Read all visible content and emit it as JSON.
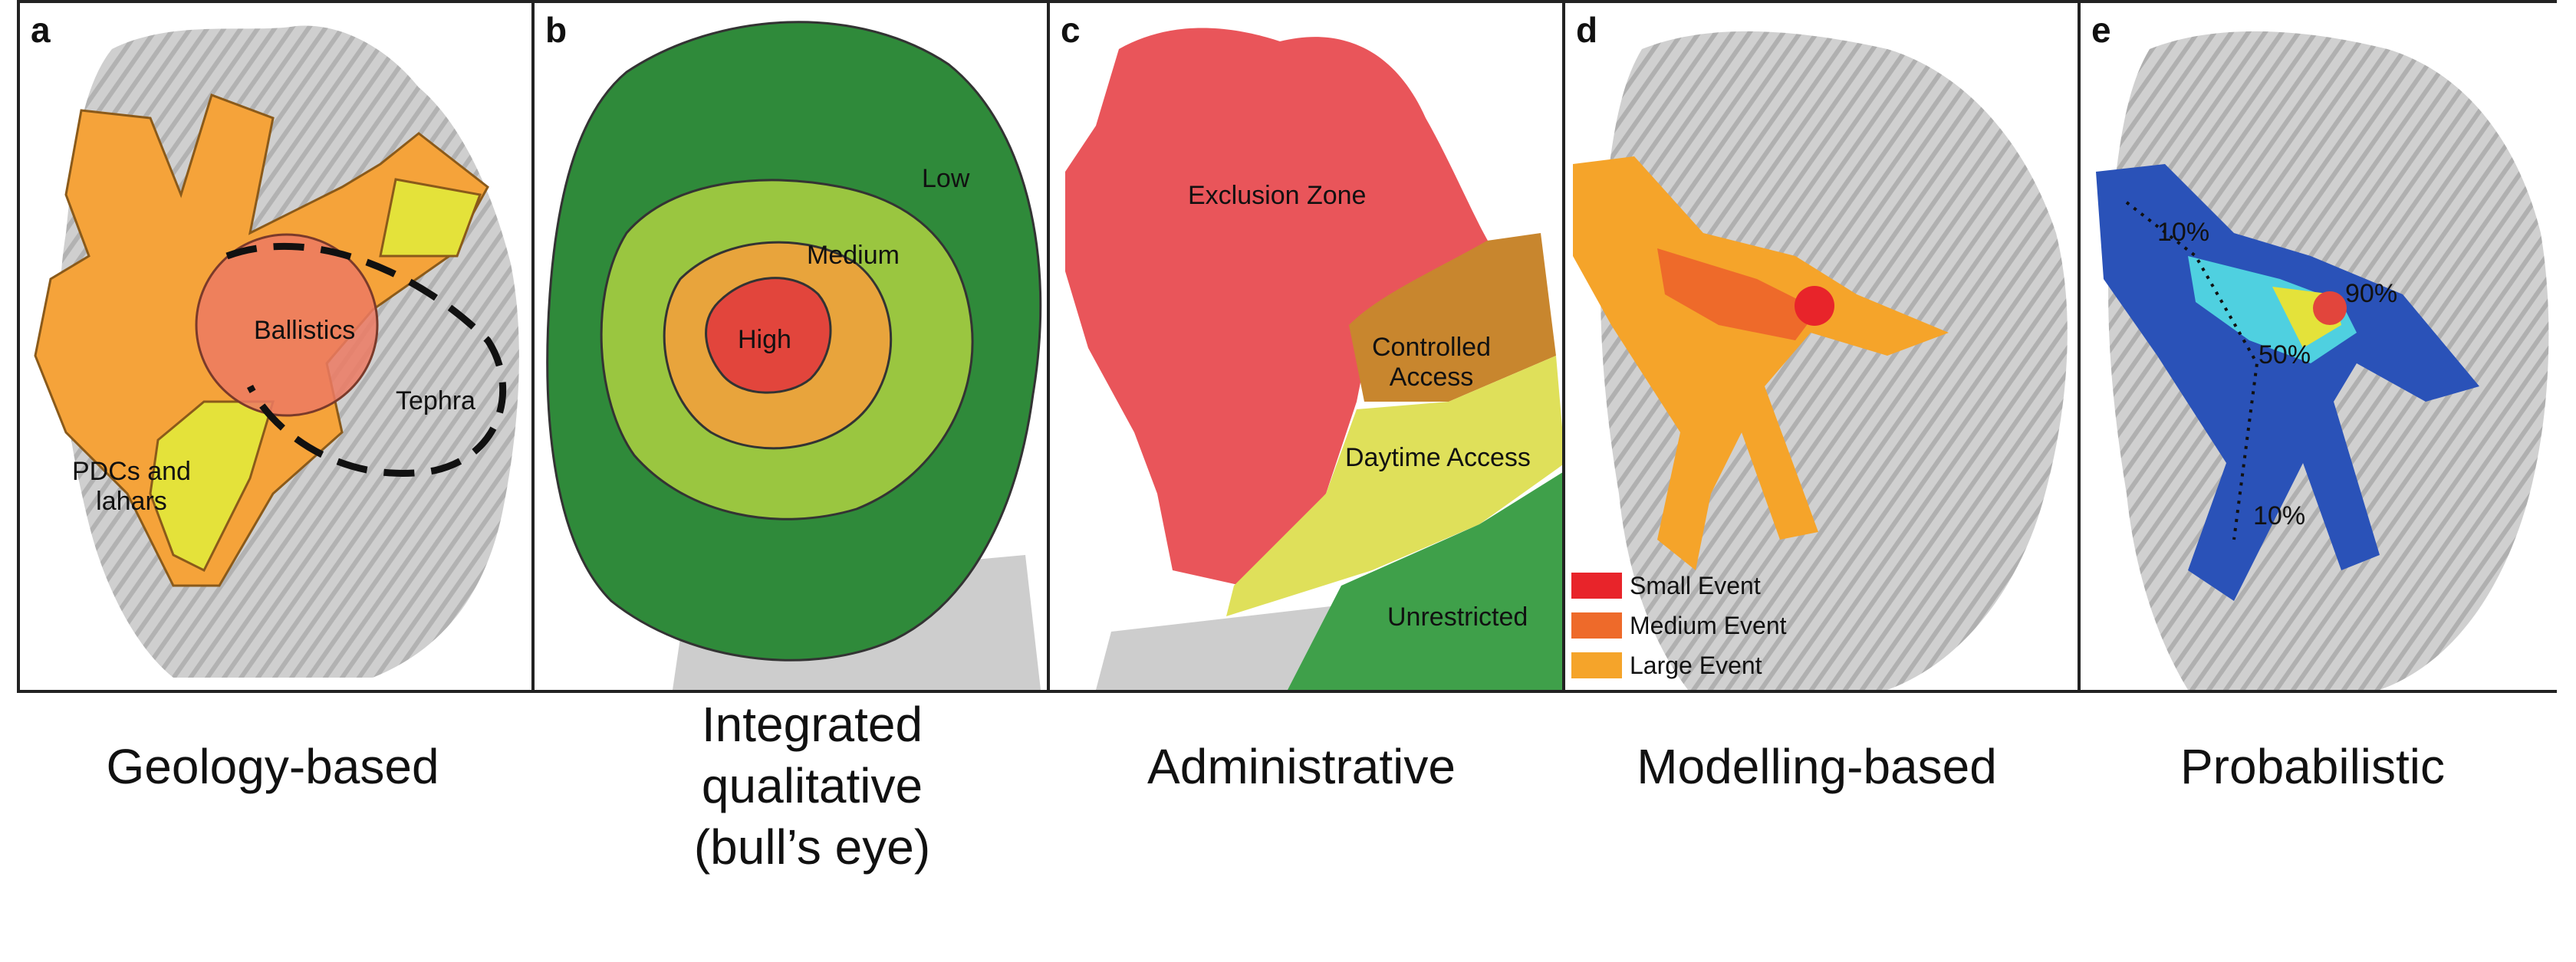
{
  "panels": [
    {
      "letter": "a",
      "caption": "Geology-based",
      "labels": {
        "ballistics": "Ballistics",
        "tephra": "Tephra",
        "pdcs": "PDCs and\nlahars"
      }
    },
    {
      "letter": "b",
      "caption": "Integrated qualitative (bull’s eye)",
      "labels": {
        "low": "Low",
        "medium": "Medium",
        "high": "High"
      }
    },
    {
      "letter": "c",
      "caption": "Administrative",
      "labels": {
        "exclusion": "Exclusion Zone",
        "controlled": "Controlled\nAccess",
        "daytime": "Daytime Access",
        "unrestricted": "Unrestricted"
      }
    },
    {
      "letter": "d",
      "caption": "Modelling-based",
      "legend": [
        {
          "label": "Small Event",
          "color": "#e8242a"
        },
        {
          "label": "Medium Event",
          "color": "#ee6a2a"
        },
        {
          "label": "Large Event",
          "color": "#f5a42a"
        }
      ]
    },
    {
      "letter": "e",
      "caption": "Probabilistic",
      "labels": {
        "p10a": "10%",
        "p90": "90%",
        "p50": "50%",
        "p10b": "10%"
      }
    }
  ],
  "colors": {
    "terrain": "#c9c9c9",
    "terrain_dark": "#9a9a9a",
    "orange": "#f5a33a",
    "yellow": "#e4e23a",
    "salmon": "#ec7a63",
    "green_dark": "#2f8a3a",
    "green_mid": "#9ac640",
    "orange_mid": "#e8a43c",
    "red": "#e2453c",
    "red_zone": "#e9555a",
    "brown": "#c8862e",
    "yellow_zone": "#dfe05a",
    "green_zone": "#3fa04a",
    "blue": "#2a52b8",
    "cyan": "#4fd0e0"
  }
}
